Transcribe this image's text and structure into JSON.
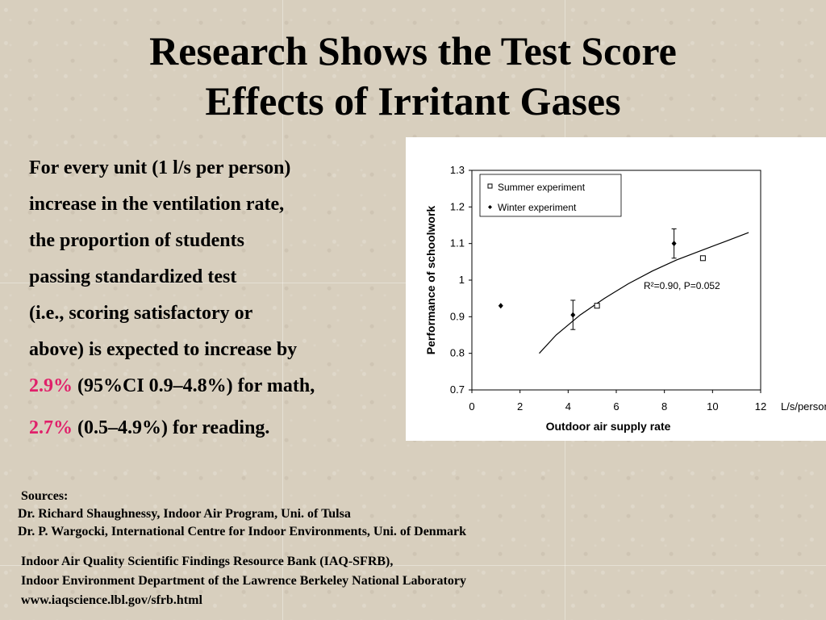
{
  "title_line1": "Research Shows the Test Score",
  "title_line2": "Effects of Irritant Gases",
  "body": {
    "l1": "For every unit (1 l/s per person)",
    "l2": "increase in the ventilation rate,",
    "l3": "the proportion of students",
    "l4": "passing standardized test",
    "l5": "(i.e., scoring satisfactory or",
    "l6": "above) is expected to increase by",
    "math_pct": "2.9%",
    "math_rest": " (95%CI 0.9–4.8%) for math,",
    "reading_pct": "2.7%",
    "reading_rest": " (0.5–4.9%) for reading."
  },
  "sources": {
    "heading": "Sources:",
    "s1": "Dr. Richard Shaughnessy, Indoor Air Program, Uni. of Tulsa",
    "s2": "Dr. P. Wargocki, International Centre for Indoor Environments, Uni. of Denmark",
    "r1": "Indoor Air Quality Scientific Findings Resource Bank (IAQ-SFRB),",
    "r2": "Indoor Environment Department of the Lawrence Berkeley National Laboratory",
    "r3": "www.iaqscience.lbl.gov/sfrb.html"
  },
  "colors": {
    "highlight": "#e0206a",
    "background": "#d8cfbe"
  },
  "chart_data": {
    "type": "scatter",
    "xlabel": "Outdoor air supply rate",
    "xunit": "L/s/person",
    "ylabel": "Performance of schoolwork",
    "xlim": [
      0,
      12
    ],
    "ylim": [
      0.7,
      1.3
    ],
    "x_ticks": [
      0,
      2,
      4,
      6,
      8,
      10,
      12
    ],
    "y_ticks": [
      0.7,
      0.8,
      0.9,
      1.0,
      1.1,
      1.2,
      1.3
    ],
    "x_tick_labels": [
      "0",
      "2",
      "4",
      "6",
      "8",
      "10",
      "12"
    ],
    "y_tick_labels": [
      "0.7",
      "0.8",
      "0.9",
      "1",
      "1.1",
      "1.2",
      "1.3"
    ],
    "legend": [
      "Summer experiment",
      "Winter experiment"
    ],
    "legend_position": "top-left",
    "annotation": "R²=0.90, P=0.052",
    "series": [
      {
        "name": "Summer experiment",
        "points": [
          {
            "x": 5.2,
            "y": 0.93
          },
          {
            "x": 9.6,
            "y": 1.06
          }
        ]
      },
      {
        "name": "Winter experiment",
        "points": [
          {
            "x": 1.2,
            "y": 0.93
          },
          {
            "x": 4.2,
            "y": 0.905,
            "err_low": 0.865,
            "err_high": 0.945
          },
          {
            "x": 8.4,
            "y": 1.1,
            "err_low": 1.06,
            "err_high": 1.14
          }
        ]
      }
    ],
    "fit_curve": [
      {
        "x": 2.8,
        "y": 0.8
      },
      {
        "x": 3.5,
        "y": 0.85
      },
      {
        "x": 4.5,
        "y": 0.905
      },
      {
        "x": 5.5,
        "y": 0.95
      },
      {
        "x": 6.5,
        "y": 0.99
      },
      {
        "x": 7.5,
        "y": 1.025
      },
      {
        "x": 8.5,
        "y": 1.055
      },
      {
        "x": 9.5,
        "y": 1.08
      },
      {
        "x": 10.5,
        "y": 1.105
      },
      {
        "x": 11.5,
        "y": 1.13
      }
    ]
  }
}
